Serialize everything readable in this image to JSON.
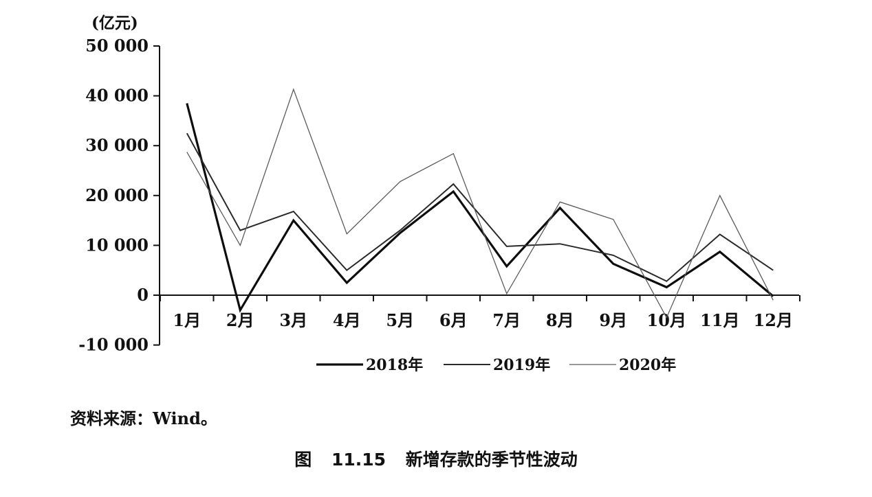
{
  "chart_data": {
    "type": "line",
    "unit_label": "(亿元)",
    "categories": [
      "1月",
      "2月",
      "3月",
      "4月",
      "5月",
      "6月",
      "7月",
      "8月",
      "9月",
      "10月",
      "11月",
      "12月"
    ],
    "y_ticks": [
      50000,
      40000,
      30000,
      20000,
      10000,
      0,
      -10000
    ],
    "y_tick_labels": [
      "50 000",
      "40 000",
      "30 000",
      "20 000",
      "10 000",
      "0",
      "-10 000"
    ],
    "ylim": [
      -10000,
      50000
    ],
    "legend_position": "bottom",
    "series": [
      {
        "name": "2018年",
        "color": "#0d0d0d",
        "values": [
          38500,
          -3000,
          15000,
          2500,
          12500,
          20800,
          5800,
          17500,
          6300,
          1600,
          8700,
          -200
        ]
      },
      {
        "name": "2019年",
        "color": "#2a2a2a",
        "values": [
          32500,
          13000,
          16800,
          5000,
          13000,
          22300,
          9800,
          10300,
          8000,
          2800,
          12200,
          5000
        ]
      },
      {
        "name": "2020年",
        "color": "#5a5a5a",
        "values": [
          28700,
          10000,
          41300,
          12300,
          22800,
          28400,
          300,
          18700,
          15200,
          -4500,
          20000,
          -1000
        ]
      }
    ]
  },
  "source_text": "资料来源：Wind。",
  "caption": "图 11.15 新增存款的季节性波动"
}
